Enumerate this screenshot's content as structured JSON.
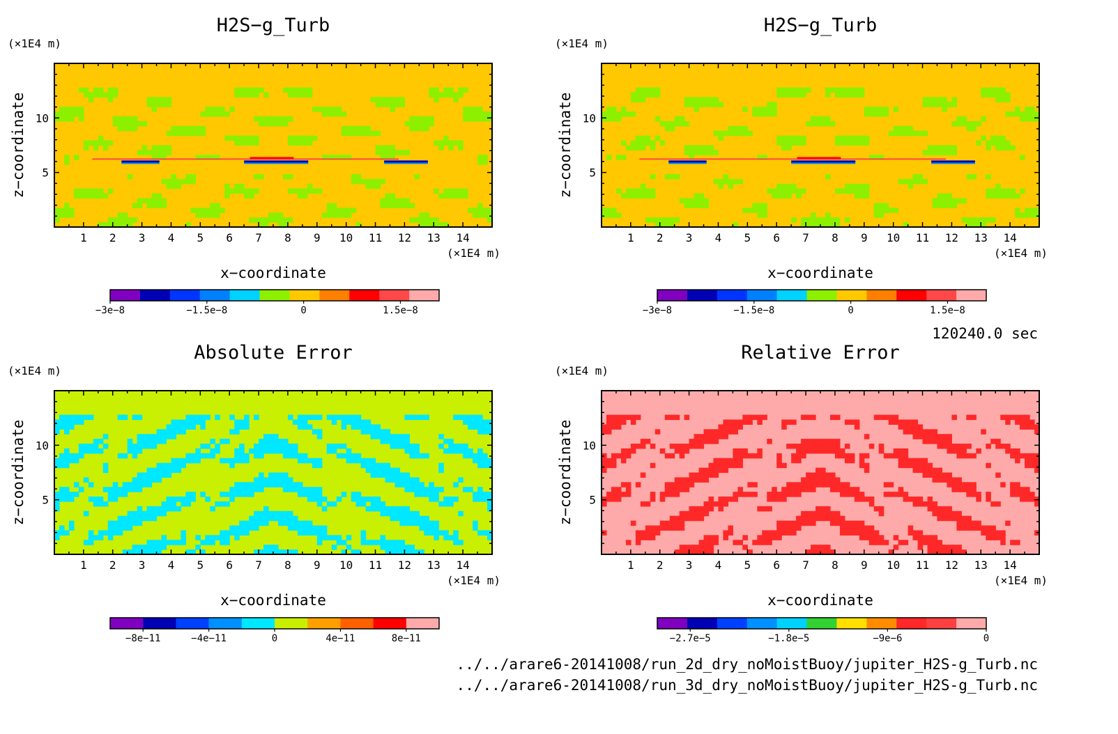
{
  "time_label": "120240.0 sec",
  "files": [
    "../../arare6-20141008/run_2d_dry_noMoistBuoy/jupiter_H2S-g_Turb.nc",
    "../../arare6-20141008/run_3d_dry_noMoistBuoy/jupiter_H2S-g_Turb.nc"
  ],
  "colors": {
    "rainbow10": [
      "#7f00bf",
      "#0000b4",
      "#0035ff",
      "#0080ff",
      "#00d2ff",
      "#8cf000",
      "#ffc800",
      "#ff8000",
      "#ff0000",
      "#ff4848",
      "#ffaaaa"
    ],
    "abs_palette": [
      "#7f00bf",
      "#0000b4",
      "#0040ff",
      "#0090ff",
      "#00e8ff",
      "#c8f000",
      "#ffa000",
      "#ff6000",
      "#ff0000",
      "#ffaaaa"
    ],
    "rel_palette": [
      "#7f00bf",
      "#0000b4",
      "#0040ff",
      "#0090ff",
      "#00d2ff",
      "#32d232",
      "#ffe000",
      "#ff8c00",
      "#ff2828",
      "#ff4040",
      "#ffaaaa"
    ]
  },
  "chart_data": [
    {
      "type": "heatmap",
      "title": "H2S−g_Turb",
      "xlabel": "x−coordinate",
      "ylabel": "z−coordinate",
      "x_unit": "(×1E4 m)",
      "y_unit": "(×1E4 m)",
      "xlim": [
        0,
        15
      ],
      "ylim": [
        0,
        15
      ],
      "x_ticks": [
        1,
        2,
        3,
        4,
        5,
        6,
        7,
        8,
        9,
        10,
        11,
        12,
        13,
        14
      ],
      "y_ticks": [
        5,
        10
      ],
      "colorbar": {
        "min": -3e-08,
        "max": 2.1e-08,
        "tick_values": [
          -3e-08,
          -1.5e-08,
          0,
          1.5e-08
        ],
        "tick_labels": [
          "−3e−8",
          "−1.5e−8",
          "0",
          "1.5e−8"
        ]
      },
      "dominant_value": 0,
      "pattern": "turbulent"
    },
    {
      "type": "heatmap",
      "title": "H2S−g_Turb",
      "xlabel": "x−coordinate",
      "ylabel": "z−coordinate",
      "x_unit": "(×1E4 m)",
      "y_unit": "(×1E4 m)",
      "xlim": [
        0,
        15
      ],
      "ylim": [
        0,
        15
      ],
      "x_ticks": [
        1,
        2,
        3,
        4,
        5,
        6,
        7,
        8,
        9,
        10,
        11,
        12,
        13,
        14
      ],
      "y_ticks": [
        5,
        10
      ],
      "colorbar": {
        "min": -3e-08,
        "max": 2.1e-08,
        "tick_values": [
          -3e-08,
          -1.5e-08,
          0,
          1.5e-08
        ],
        "tick_labels": [
          "−3e−8",
          "−1.5e−8",
          "0",
          "1.5e−8"
        ]
      },
      "dominant_value": 0,
      "pattern": "turbulent"
    },
    {
      "type": "heatmap",
      "title": "Absolute Error",
      "xlabel": "x−coordinate",
      "ylabel": "z−coordinate",
      "x_unit": "(×1E4 m)",
      "y_unit": "(×1E4 m)",
      "xlim": [
        0,
        15
      ],
      "ylim": [
        0,
        15
      ],
      "x_ticks": [
        1,
        2,
        3,
        4,
        5,
        6,
        7,
        8,
        9,
        10,
        11,
        12,
        13,
        14
      ],
      "y_ticks": [
        5,
        10
      ],
      "colorbar": {
        "min": -1e-10,
        "max": 1e-10,
        "tick_values": [
          -8e-11,
          -4e-11,
          0,
          4e-11,
          8e-11
        ],
        "tick_labels": [
          "−8e−11",
          "−4e−11",
          "0",
          "4e−11",
          "8e−11"
        ]
      },
      "dominant_value": 0,
      "pattern": "error"
    },
    {
      "type": "heatmap",
      "title": "Relative Error",
      "xlabel": "x−coordinate",
      "ylabel": "z−coordinate",
      "x_unit": "(×1E4 m)",
      "y_unit": "(×1E4 m)",
      "xlim": [
        0,
        15
      ],
      "ylim": [
        0,
        15
      ],
      "x_ticks": [
        1,
        2,
        3,
        4,
        5,
        6,
        7,
        8,
        9,
        10,
        11,
        12,
        13,
        14
      ],
      "y_ticks": [
        5,
        10
      ],
      "colorbar": {
        "min": -3e-05,
        "max": 0,
        "tick_values": [
          -2.7e-05,
          -1.8e-05,
          -9e-06,
          0
        ],
        "tick_labels": [
          "−2.7e−5",
          "−1.8e−5",
          "−9e−6",
          "0"
        ]
      },
      "dominant_value": 0,
      "pattern": "relerror"
    }
  ]
}
